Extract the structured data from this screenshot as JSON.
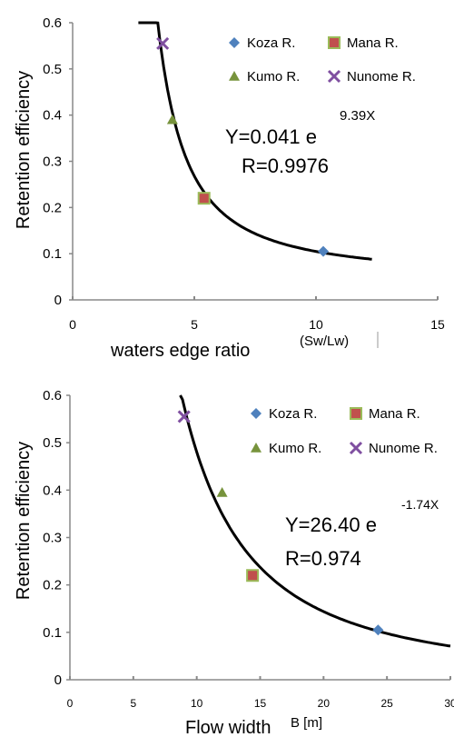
{
  "chart_data": [
    {
      "type": "scatter",
      "xlabel": "waters edge ratio",
      "xunit": "(Sw/Lw)",
      "ylabel": "Retention efficiency",
      "xlim": [
        0,
        15
      ],
      "ylim": [
        0,
        0.6
      ],
      "xticks": [
        "0",
        "5",
        "10",
        "15"
      ],
      "yticks": [
        "0",
        "0.1",
        "0.2",
        "0.3",
        "0.4",
        "0.5",
        "0.6"
      ],
      "series": [
        {
          "name": "Koza R.",
          "marker": "diamond",
          "color": "#4f81bd",
          "points": [
            [
              10.3,
              0.105
            ]
          ]
        },
        {
          "name": "Mana R.",
          "marker": "square",
          "color": "#c0504d",
          "edge": "#9bbb59",
          "points": [
            [
              5.4,
              0.22
            ]
          ]
        },
        {
          "name": "Kumo R.",
          "marker": "triangle",
          "color": "#77933c",
          "points": [
            [
              4.1,
              0.39
            ]
          ]
        },
        {
          "name": "Nunome R.",
          "marker": "x",
          "color": "#7f4fa0",
          "points": [
            [
              3.7,
              0.555
            ]
          ]
        }
      ],
      "fit": {
        "a": 0.041,
        "b": 9.39,
        "type": "a*exp(b/x)",
        "x_range": [
          2.7,
          12.3
        ]
      },
      "equation_base": "Y=0.041 e",
      "equation_exponent": "9.39X",
      "equation_r": "R=0.9976",
      "legend_position": "top-right",
      "grid": false
    },
    {
      "type": "scatter",
      "xlabel": "Flow width",
      "xunit": "B [m]",
      "ylabel": "Retention efficiency",
      "xlim": [
        0,
        30
      ],
      "ylim": [
        0,
        0.6
      ],
      "xticks": [
        "0",
        "5",
        "10",
        "15",
        "20",
        "25",
        "30"
      ],
      "yticks": [
        "0",
        "0.1",
        "0.2",
        "0.3",
        "0.4",
        "0.5",
        "0.6"
      ],
      "series": [
        {
          "name": "Koza R.",
          "marker": "diamond",
          "color": "#4f81bd",
          "points": [
            [
              24.3,
              0.105
            ]
          ]
        },
        {
          "name": "Mana R.",
          "marker": "square",
          "color": "#c0504d",
          "edge": "#9bbb59",
          "points": [
            [
              14.4,
              0.22
            ]
          ]
        },
        {
          "name": "Kumo R.",
          "marker": "triangle",
          "color": "#77933c",
          "points": [
            [
              12.0,
              0.395
            ]
          ]
        },
        {
          "name": "Nunome R.",
          "marker": "x",
          "color": "#7f4fa0",
          "points": [
            [
              9.0,
              0.555
            ]
          ]
        }
      ],
      "fit": {
        "a": 26.4,
        "b": -1.74,
        "type": "a*x^b",
        "x_range": [
          8.7,
          30
        ]
      },
      "equation_base": "Y=26.40 e",
      "equation_exponent": "-1.74X",
      "equation_r": "R=0.974",
      "legend_position": "top-right",
      "grid": false
    }
  ]
}
